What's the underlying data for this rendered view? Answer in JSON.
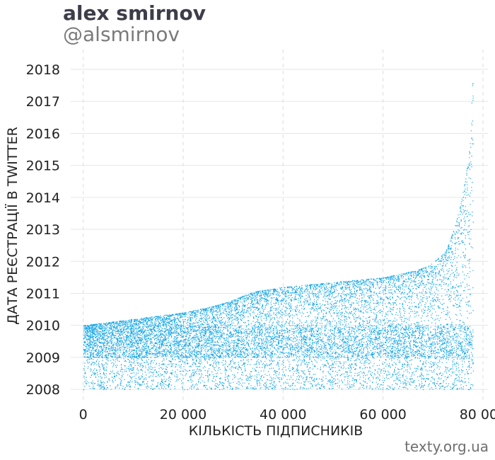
{
  "header": {
    "title": "alex smirnov",
    "subtitle": "@alsmirnov"
  },
  "footer": {
    "source": "texty.org.ua"
  },
  "colors": {
    "points": "#12a5e6",
    "grid_h": "#e6e6e6",
    "grid_v": "#dcdcdc"
  },
  "chart_data": {
    "type": "scatter",
    "xlabel": "КІЛЬКІСТЬ ПІДПИСНИКІВ",
    "ylabel": "ДАТА РЕЄСТРАЦІЇ В TWITTER",
    "xlim": [
      -2500,
      81000
    ],
    "ylim": [
      2007.67,
      2018.62
    ],
    "x_ticks": [
      0,
      20000,
      40000,
      60000,
      80000
    ],
    "x_tick_labels": [
      "0",
      "20 000",
      "40 000",
      "60 000",
      "80 000"
    ],
    "y_ticks": [
      2008,
      2009,
      2010,
      2011,
      2012,
      2013,
      2014,
      2015,
      2016,
      2017,
      2018
    ],
    "y_tick_labels": [
      "2008",
      "2009",
      "2010",
      "2011",
      "2012",
      "2013",
      "2014",
      "2015",
      "2016",
      "2017",
      "2018"
    ],
    "grid": true,
    "series": [
      {
        "upper_envelope": {
          "x": [
            0,
            5000,
            10000,
            15000,
            20000,
            23000,
            26000,
            30000,
            34000,
            40000,
            50000,
            60000,
            66000,
            69000,
            71000,
            72500,
            73500,
            74500,
            75500,
            76500,
            77200,
            77600,
            78000
          ],
          "y": [
            2010.0,
            2010.1,
            2010.2,
            2010.3,
            2010.4,
            2010.5,
            2010.6,
            2010.8,
            2011.05,
            2011.2,
            2011.35,
            2011.5,
            2011.7,
            2011.85,
            2012.1,
            2012.3,
            2012.7,
            2013.2,
            2013.8,
            2014.6,
            2015.5,
            2016.5,
            2018.3
          ]
        },
        "lower_bound": 2008.0,
        "count": 78000,
        "dense_band": [
          2009.0,
          2010.0
        ]
      }
    ]
  }
}
